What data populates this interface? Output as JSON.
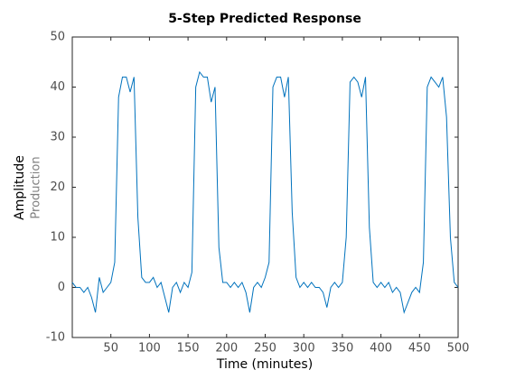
{
  "chart_data": {
    "type": "line",
    "title": "5-Step Predicted Response",
    "xlabel": "Time (minutes)",
    "ylabel": "Amplitude",
    "ylabel_sub": "Production",
    "x": [
      0,
      5,
      10,
      15,
      20,
      25,
      30,
      35,
      40,
      45,
      50,
      55,
      60,
      65,
      70,
      75,
      80,
      85,
      90,
      95,
      100,
      105,
      110,
      115,
      120,
      125,
      130,
      135,
      140,
      145,
      150,
      155,
      160,
      165,
      170,
      175,
      180,
      185,
      190,
      195,
      200,
      205,
      210,
      215,
      220,
      225,
      230,
      235,
      240,
      245,
      250,
      255,
      260,
      265,
      270,
      275,
      280,
      285,
      290,
      295,
      300,
      305,
      310,
      315,
      320,
      325,
      330,
      335,
      340,
      345,
      350,
      355,
      360,
      365,
      370,
      375,
      380,
      385,
      390,
      395,
      400,
      405,
      410,
      415,
      420,
      425,
      430,
      435,
      440,
      445,
      450,
      455,
      460,
      465,
      470,
      475,
      480,
      485,
      490,
      495,
      500
    ],
    "series": [
      {
        "name": "Production",
        "color": "#0072bd",
        "values": [
          1,
          0,
          0,
          -1,
          0,
          -2,
          -5,
          2,
          -1,
          0,
          1,
          5,
          38,
          42,
          42,
          39,
          42,
          14,
          2,
          1,
          1,
          2,
          0,
          1,
          -2,
          -5,
          0,
          1,
          -1,
          1,
          0,
          3,
          40,
          43,
          42,
          42,
          37,
          40,
          8,
          1,
          1,
          0,
          1,
          0,
          1,
          -1,
          -5,
          0,
          1,
          0,
          2,
          5,
          40,
          42,
          42,
          38,
          42,
          15,
          2,
          0,
          1,
          0,
          1,
          0,
          0,
          -1,
          -4,
          0,
          1,
          0,
          1,
          10,
          41,
          42,
          41,
          38,
          42,
          12,
          1,
          0,
          1,
          0,
          1,
          -1,
          0,
          -1,
          -5,
          -3,
          -1,
          0,
          -1,
          5,
          40,
          42,
          41,
          40,
          42,
          34,
          10,
          1,
          0
        ]
      }
    ],
    "xlim": [
      0,
      500
    ],
    "xticks": [
      50,
      100,
      150,
      200,
      250,
      300,
      350,
      400,
      450,
      500
    ],
    "ylim": [
      -10,
      50
    ],
    "yticks": [
      -10,
      0,
      10,
      20,
      30,
      40,
      50
    ]
  }
}
